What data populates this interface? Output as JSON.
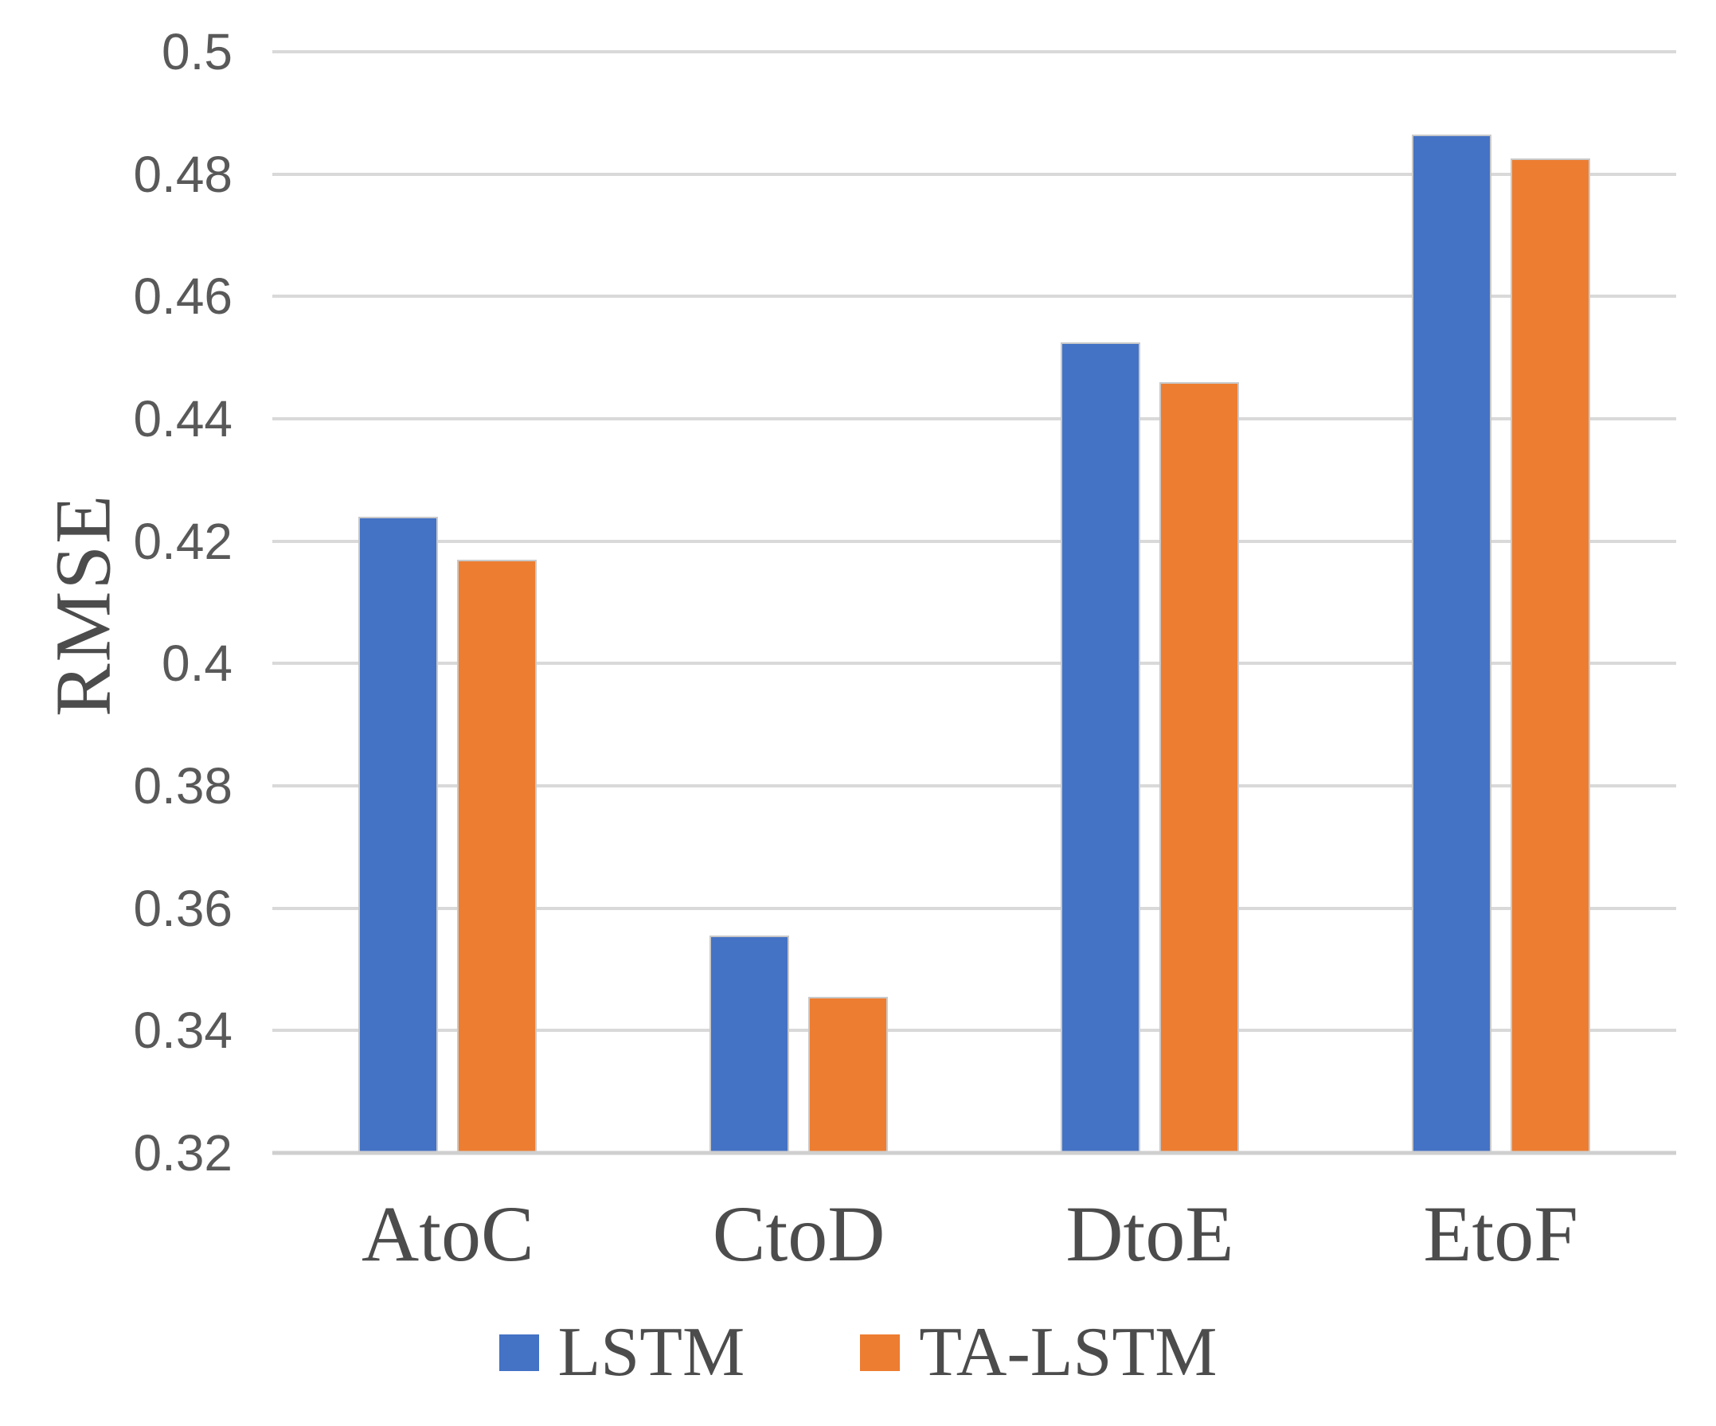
{
  "chart_data": {
    "type": "bar",
    "categories": [
      "AtoC",
      "CtoD",
      "DtoE",
      "EtoF"
    ],
    "series": [
      {
        "name": "LSTM",
        "color": "#4472C4",
        "values": [
          0.424,
          0.3555,
          0.4525,
          0.4865
        ]
      },
      {
        "name": "TA-LSTM",
        "color": "#ED7D31",
        "values": [
          0.417,
          0.3455,
          0.446,
          0.4825
        ]
      }
    ],
    "title": "",
    "xlabel": "",
    "ylabel": "RMSE",
    "ylim": [
      0.32,
      0.5
    ],
    "ytick_step": 0.02,
    "ytick_labels": [
      "0.32",
      "0.34",
      "0.36",
      "0.38",
      "0.4",
      "0.42",
      "0.44",
      "0.46",
      "0.48",
      "0.5"
    ],
    "grid": true,
    "legend_position": "bottom",
    "colors": {
      "gridline": "#D9D9D9",
      "baseline": "#CFCFCF",
      "tick_text": "#595959",
      "label_text": "#4C4C4C",
      "bar_border": "#C9C9C9"
    }
  }
}
